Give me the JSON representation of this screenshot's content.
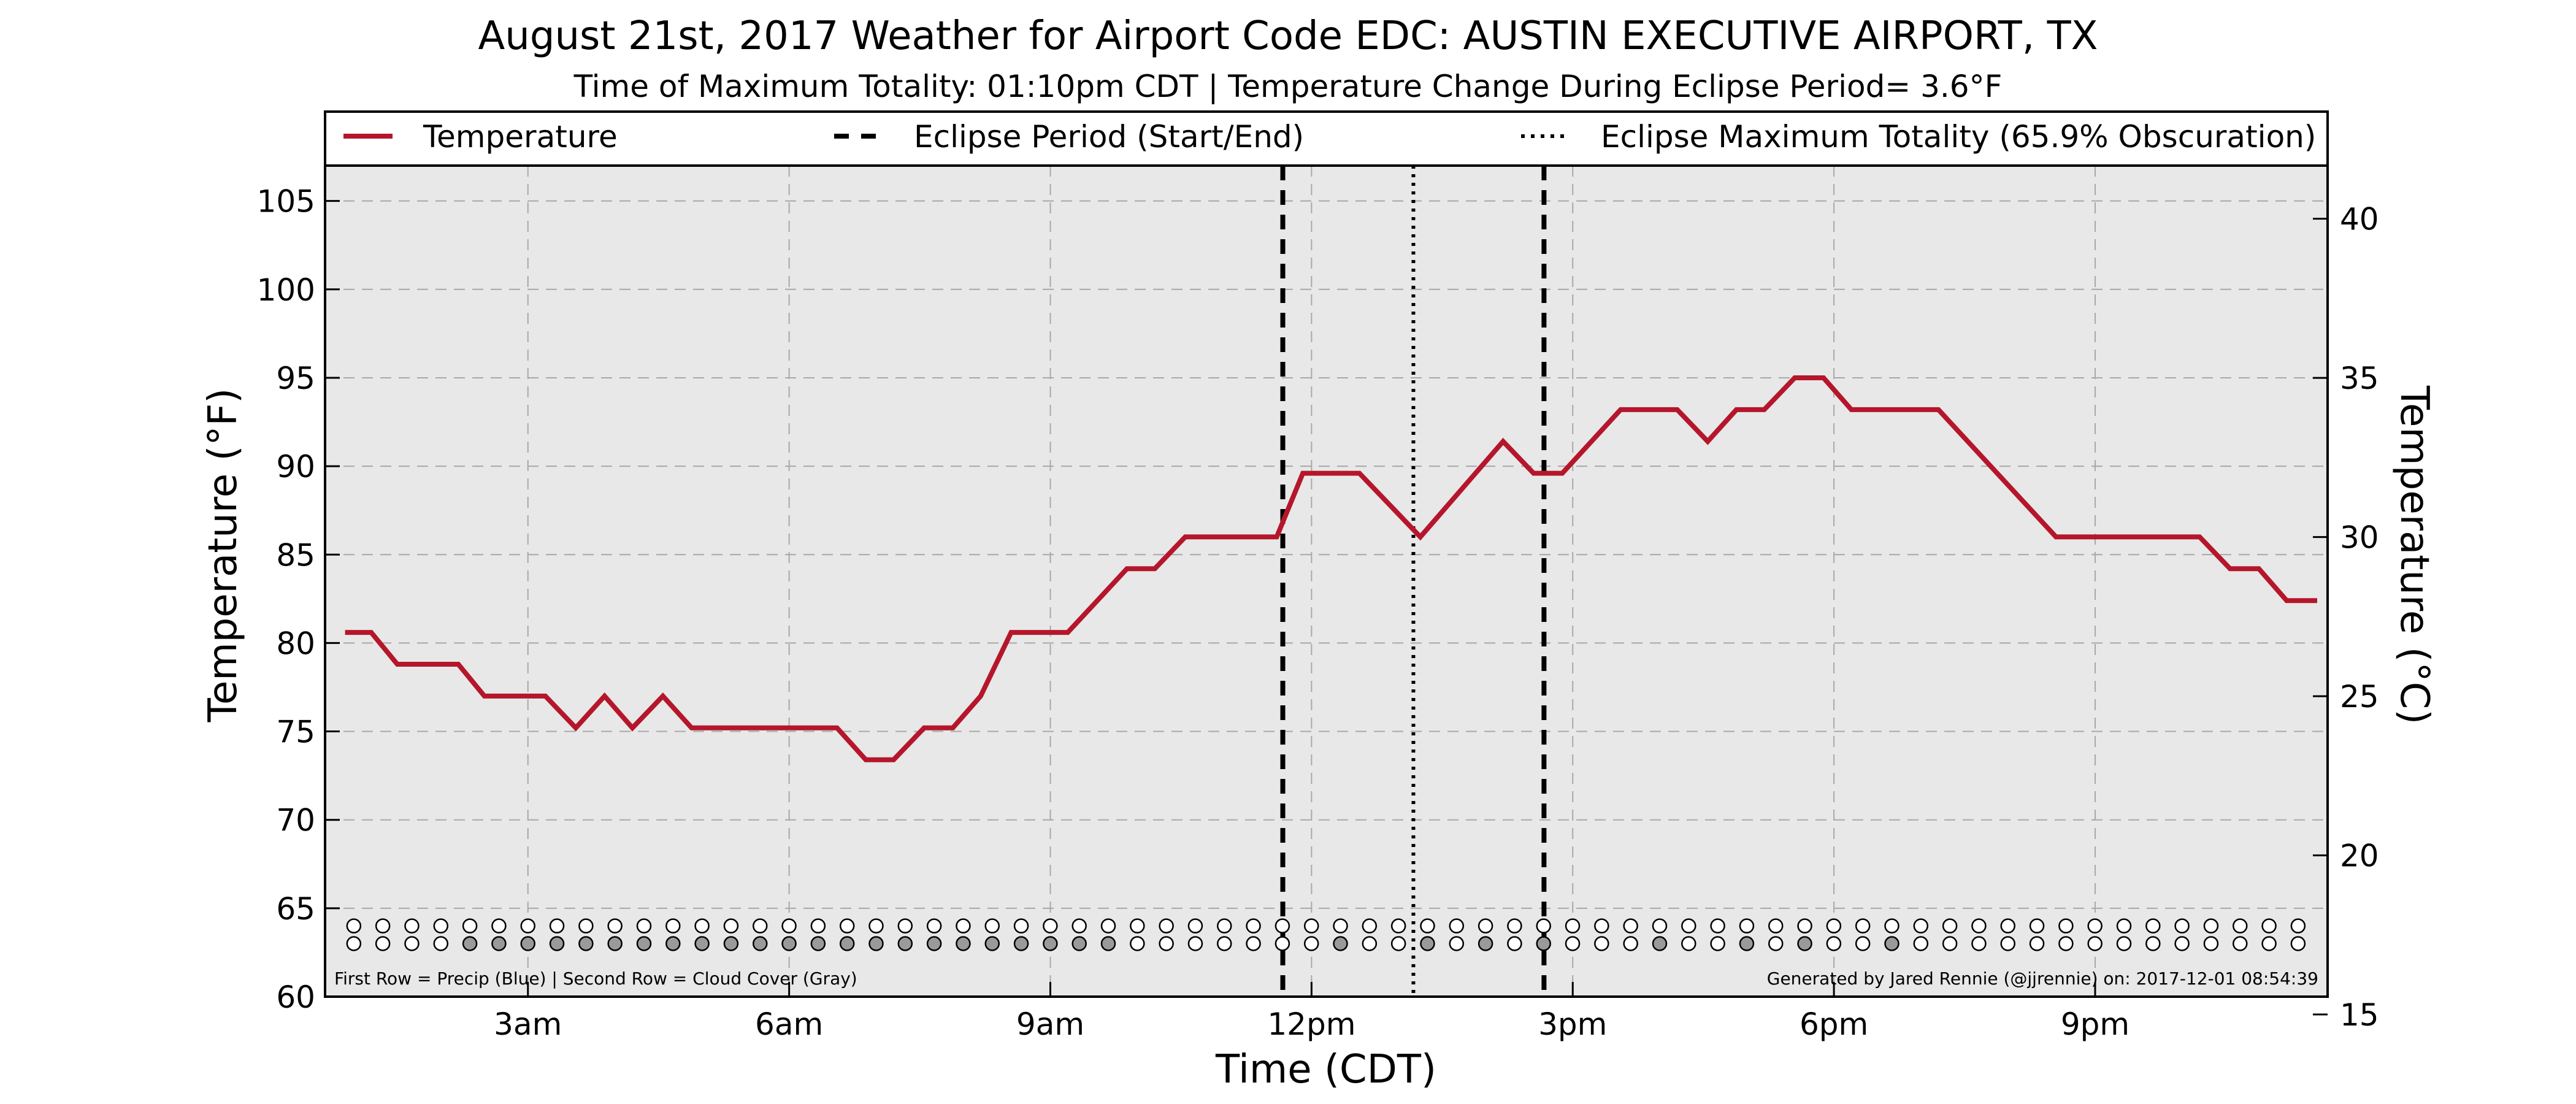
{
  "chart_data": {
    "type": "line",
    "title": "August 21st, 2017 Weather for Airport Code EDC: AUSTIN EXECUTIVE AIRPORT, TX",
    "subtitle": "Time of Maximum Totality: 01:10pm CDT | Temperature Change During Eclipse Period= 3.6°F",
    "xlabel": "Time (CDT)",
    "ylabel": "Temperature (°F)",
    "y2label": "Temperature (°C)",
    "xunit": "hours after midnight CDT",
    "xlim": [
      0.67,
      23.67
    ],
    "ylim": [
      60,
      107
    ],
    "y2lim": [
      15.56,
      41.67
    ],
    "grid": true,
    "legend_position": "top",
    "x_ticks": [
      {
        "value": 3,
        "label": "3am"
      },
      {
        "value": 6,
        "label": "6am"
      },
      {
        "value": 9,
        "label": "9am"
      },
      {
        "value": 12,
        "label": "12pm"
      },
      {
        "value": 15,
        "label": "3pm"
      },
      {
        "value": 18,
        "label": "6pm"
      },
      {
        "value": 21,
        "label": "9pm"
      }
    ],
    "y_ticks": [
      {
        "value": 60,
        "label": "60"
      },
      {
        "value": 65,
        "label": "65"
      },
      {
        "value": 70,
        "label": "70"
      },
      {
        "value": 75,
        "label": "75"
      },
      {
        "value": 80,
        "label": "80"
      },
      {
        "value": 85,
        "label": "85"
      },
      {
        "value": 90,
        "label": "90"
      },
      {
        "value": 95,
        "label": "95"
      },
      {
        "value": 100,
        "label": "100"
      },
      {
        "value": 105,
        "label": "105"
      }
    ],
    "y2_ticks": [
      {
        "value": 15,
        "label": "15"
      },
      {
        "value": 20,
        "label": "20"
      },
      {
        "value": 25,
        "label": "25"
      },
      {
        "value": 30,
        "label": "30"
      },
      {
        "value": 35,
        "label": "35"
      },
      {
        "value": 40,
        "label": "40"
      }
    ],
    "legend": [
      {
        "label": "Temperature",
        "style": "solid",
        "color": "#b5162b"
      },
      {
        "label": "Eclipse Period (Start/End)",
        "style": "dashed",
        "color": "#000000"
      },
      {
        "label": "Eclipse Maximum Totality (65.9% Obscuration)",
        "style": "dotted",
        "color": "#000000"
      }
    ],
    "vlines": [
      {
        "x": 11.67,
        "style": "dashed"
      },
      {
        "x": 13.17,
        "style": "dotted"
      },
      {
        "x": 14.67,
        "style": "dashed"
      }
    ],
    "series": [
      {
        "name": "Temperature",
        "color": "#b5162b",
        "points": [
          [
            0.9,
            80.6
          ],
          [
            1.2,
            80.6
          ],
          [
            1.5,
            78.8
          ],
          [
            2.2,
            78.8
          ],
          [
            2.5,
            77.0
          ],
          [
            3.2,
            77.0
          ],
          [
            3.55,
            75.2
          ],
          [
            3.88,
            77.0
          ],
          [
            4.2,
            75.2
          ],
          [
            4.55,
            77.0
          ],
          [
            4.88,
            75.2
          ],
          [
            5.55,
            75.2
          ],
          [
            6.55,
            75.2
          ],
          [
            6.88,
            73.4
          ],
          [
            7.2,
            73.4
          ],
          [
            7.55,
            75.2
          ],
          [
            7.88,
            75.2
          ],
          [
            8.2,
            77.0
          ],
          [
            8.55,
            80.6
          ],
          [
            9.2,
            80.6
          ],
          [
            9.88,
            84.2
          ],
          [
            10.2,
            84.2
          ],
          [
            10.55,
            86.0
          ],
          [
            11.6,
            86.0
          ],
          [
            11.9,
            89.6
          ],
          [
            12.55,
            89.6
          ],
          [
            13.25,
            86.0
          ],
          [
            14.2,
            91.4
          ],
          [
            14.55,
            89.6
          ],
          [
            14.88,
            89.6
          ],
          [
            15.55,
            93.2
          ],
          [
            16.2,
            93.2
          ],
          [
            16.55,
            91.4
          ],
          [
            16.88,
            93.2
          ],
          [
            17.2,
            93.2
          ],
          [
            17.55,
            95.0
          ],
          [
            17.88,
            95.0
          ],
          [
            18.2,
            93.2
          ],
          [
            19.2,
            93.2
          ],
          [
            20.55,
            86.0
          ],
          [
            22.2,
            86.0
          ],
          [
            22.55,
            84.2
          ],
          [
            22.88,
            84.2
          ],
          [
            23.2,
            82.4
          ],
          [
            23.55,
            82.4
          ]
        ]
      }
    ],
    "marker_rows": {
      "precip_y": 64.0,
      "cloud_y": 63.0,
      "x_start": 1.0,
      "x_step": 0.3333,
      "count": 68,
      "precip": [
        0,
        0,
        0,
        0,
        0,
        0,
        0,
        0,
        0,
        0,
        0,
        0,
        0,
        0,
        0,
        0,
        0,
        0,
        0,
        0,
        0,
        0,
        0,
        0,
        0,
        0,
        0,
        0,
        0,
        0,
        0,
        0,
        0,
        0,
        0,
        0,
        0,
        0,
        0,
        0,
        0,
        0,
        0,
        0,
        0,
        0,
        0,
        0,
        0,
        0,
        0,
        0,
        0,
        0,
        0,
        0,
        0,
        0,
        0,
        0,
        0,
        0,
        0,
        0,
        0,
        0,
        0,
        0
      ],
      "cloud": [
        0,
        0,
        0,
        0,
        1,
        1,
        1,
        1,
        1,
        1,
        1,
        1,
        1,
        1,
        1,
        1,
        1,
        1,
        1,
        1,
        1,
        1,
        1,
        1,
        1,
        1,
        1,
        0,
        0,
        0,
        0,
        0,
        0,
        0,
        1,
        0,
        0,
        1,
        0,
        1,
        0,
        1,
        0,
        0,
        0,
        1,
        0,
        0,
        1,
        0,
        1,
        0,
        0,
        1,
        0,
        0,
        0,
        0,
        0,
        0,
        0,
        0,
        0,
        0,
        0,
        0,
        0,
        0
      ],
      "precip_color": "#1f4fbf",
      "cloud_color": "#9a9a9a",
      "note_left": "First Row = Precip (Blue) | Second Row = Cloud Cover (Gray)",
      "note_right": "Generated by Jared Rennie (@jjrennie) on: 2017-12-01 08:54:39"
    }
  }
}
